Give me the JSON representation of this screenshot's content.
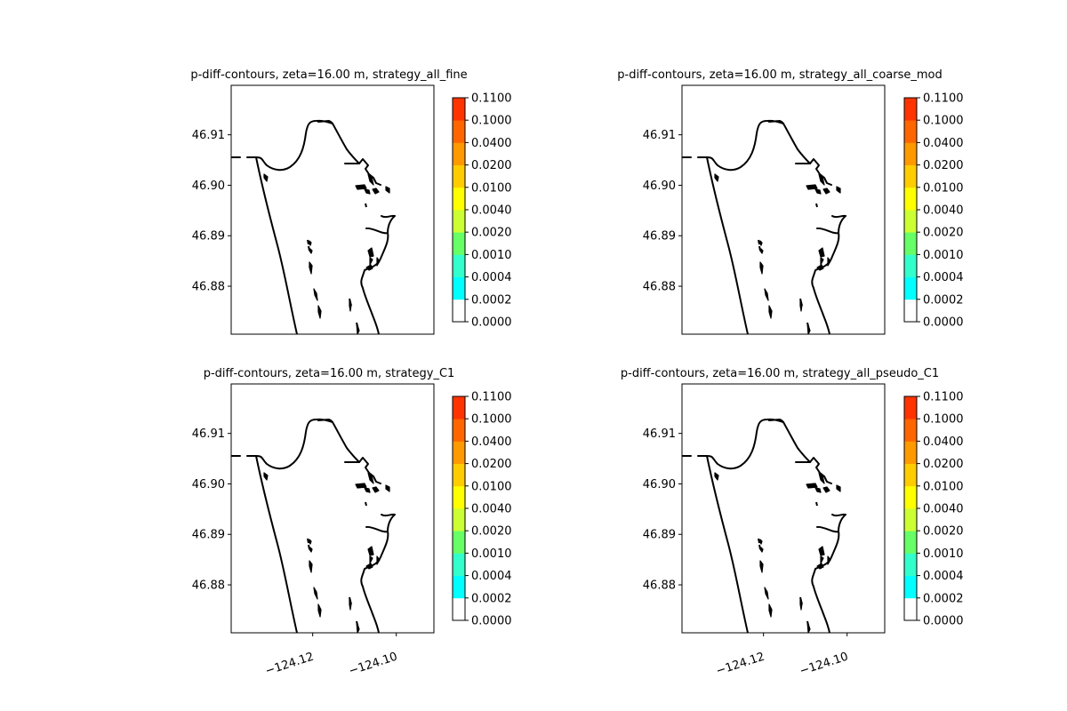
{
  "chart_data": {
    "type": "contour-map",
    "xlim": [
      -124.1395,
      -124.091
    ],
    "ylim": [
      46.8705,
      46.9198
    ],
    "xticks": [
      -124.12,
      -124.1
    ],
    "xtick_labels": [
      "−124.12",
      "−124.10"
    ],
    "yticks": [
      46.88,
      46.89,
      46.9,
      46.91
    ],
    "ytick_labels": [
      "46.88",
      "46.89",
      "46.90",
      "46.91"
    ],
    "colorbar": {
      "levels": [
        0.0,
        0.0002,
        0.0004,
        0.001,
        0.002,
        0.004,
        0.01,
        0.02,
        0.04,
        0.1,
        0.11
      ],
      "tick_labels": [
        "0.0000",
        "0.0002",
        "0.0004",
        "0.0010",
        "0.0020",
        "0.0040",
        "0.0100",
        "0.0200",
        "0.0400",
        "0.1000",
        "0.1100"
      ],
      "colors": [
        "#ffffff",
        "#00ffff",
        "#33ffcc",
        "#66ff66",
        "#ccff33",
        "#ffff00",
        "#ffcc00",
        "#ff9900",
        "#ff6600",
        "#ff3300",
        "#ff0000"
      ]
    },
    "panels": [
      {
        "title": "p-diff-contours, zeta=16.00 m, strategy_all_fine",
        "show_xticks": false
      },
      {
        "title": "p-diff-contours, zeta=16.00 m, strategy_all_coarse_mod",
        "show_xticks": false
      },
      {
        "title": "p-diff-contours, zeta=16.00 m, strategy_C1",
        "show_xticks": true
      },
      {
        "title": "p-diff-contours, zeta=16.00 m, strategy_all_pseudo_C1",
        "show_xticks": true
      }
    ]
  }
}
